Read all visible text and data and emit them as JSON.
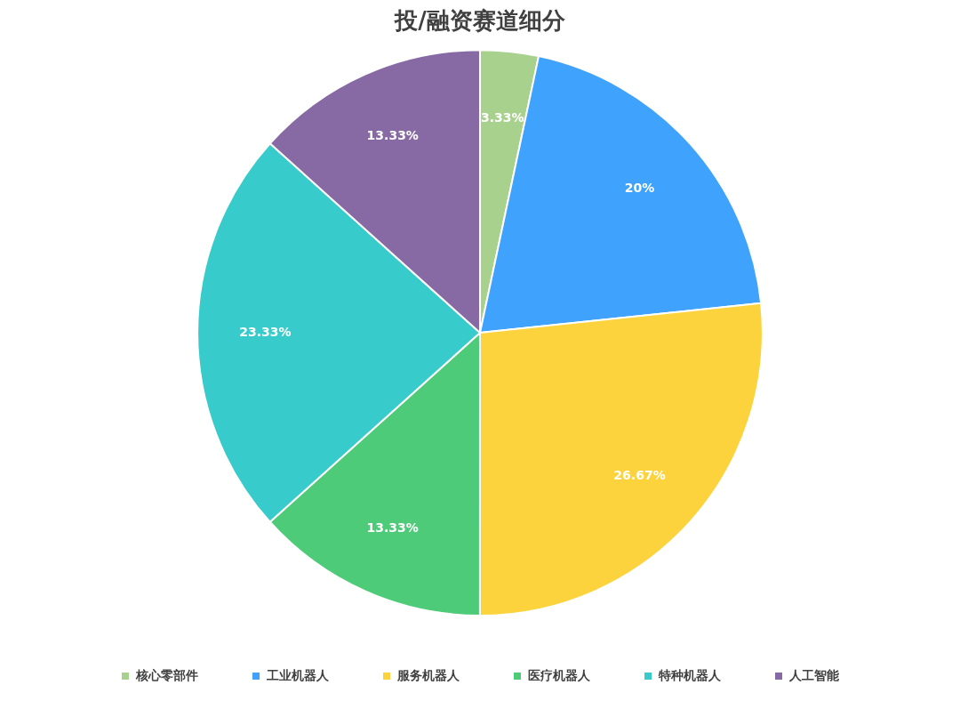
{
  "chart_data": {
    "type": "pie",
    "title": "投/融资赛道细分",
    "categories": [
      "核心零部件",
      "工业机器人",
      "服务机器人",
      "医疗机器人",
      "特种机器人",
      "人工智能"
    ],
    "values": [
      3.33,
      20,
      26.67,
      13.33,
      23.33,
      13.33
    ],
    "colors": [
      "#a9d18e",
      "#3fa2fd",
      "#fdd33d",
      "#4ecb79",
      "#38cbcb",
      "#8769a3"
    ],
    "value_labels": [
      "3.33%",
      "20%",
      "26.67%",
      "13.33%",
      "23.33%",
      "13.33%"
    ],
    "legend": "bottom"
  }
}
